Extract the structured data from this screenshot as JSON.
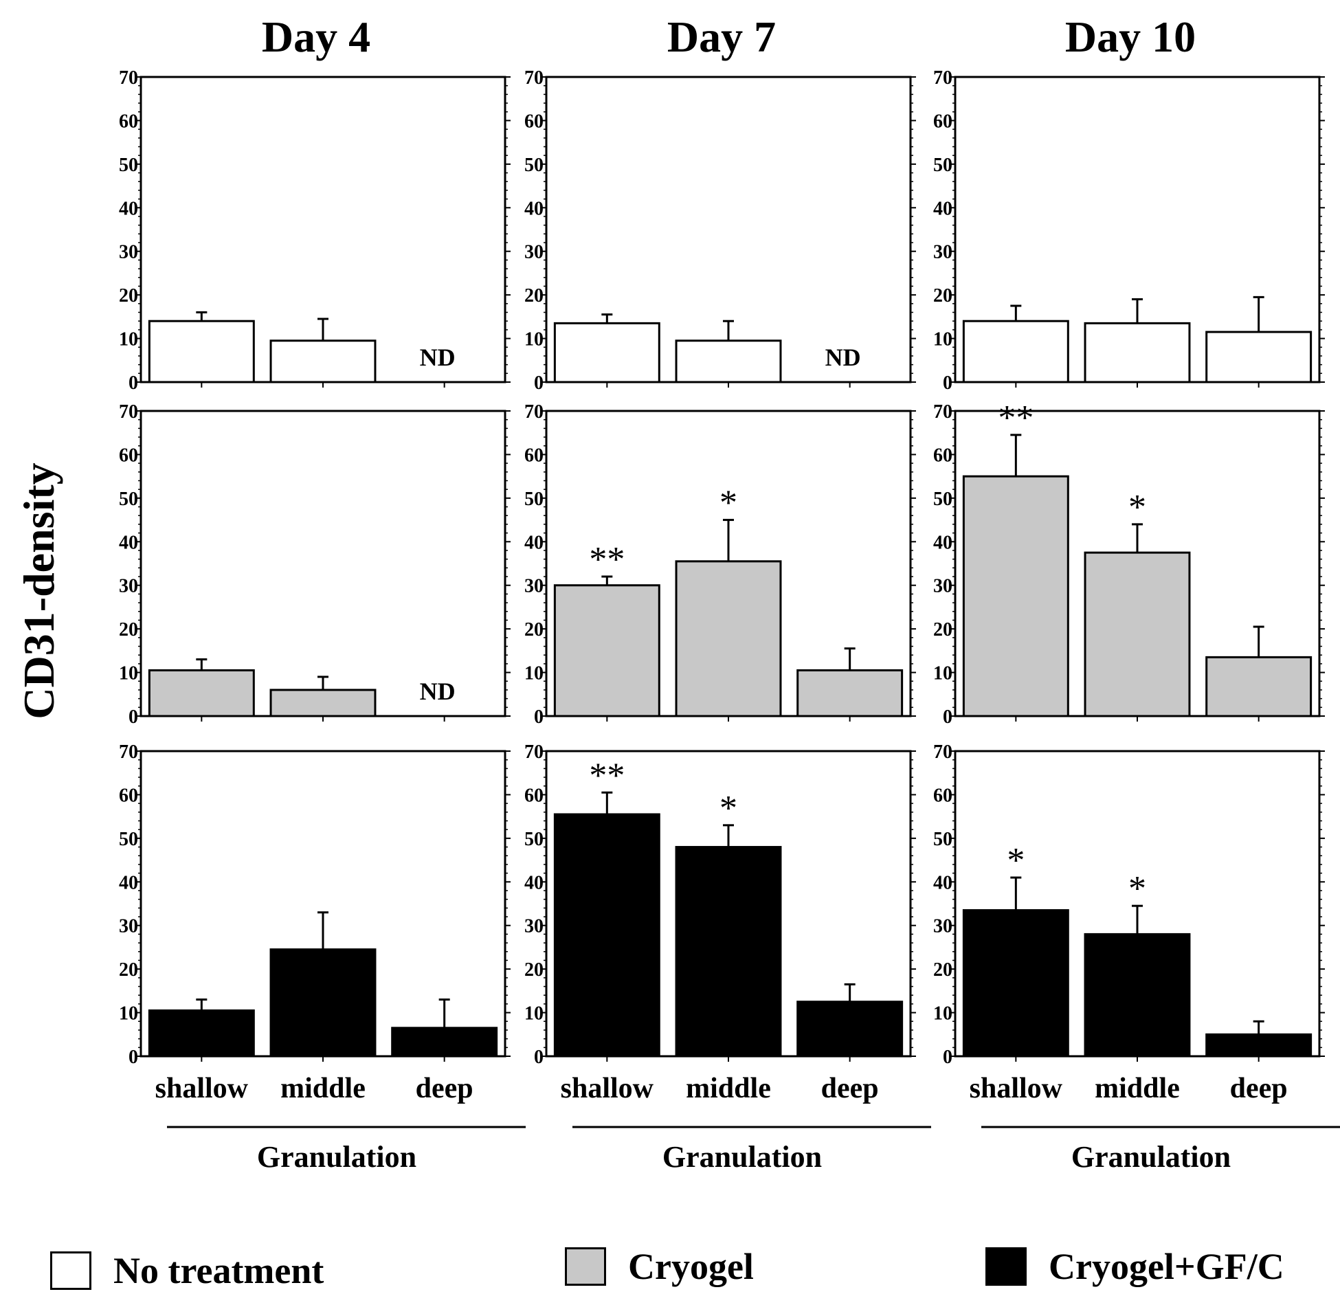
{
  "figure": {
    "ylabel": "CD31-density",
    "groups_label": "Granulation",
    "treatments": [
      {
        "name": "No treatment",
        "color": "#ffffff"
      },
      {
        "name": "Cryogel",
        "color": "#c8c8c8"
      },
      {
        "name": "Cryogel+GF/C",
        "color": "#000000"
      }
    ]
  },
  "chart_data": [
    {
      "type": "bar",
      "title": "Day 4",
      "treatment": "No treatment",
      "xlabel": "",
      "ylabel": "CD31-density",
      "ylim": [
        0,
        70
      ],
      "yticks": [
        0,
        10,
        20,
        30,
        40,
        50,
        60,
        70
      ],
      "categories": [
        "shallow",
        "middle",
        "deep"
      ],
      "values": [
        14,
        9.5,
        null
      ],
      "errors": [
        2,
        5,
        null
      ],
      "annotations": [
        "",
        "",
        "ND"
      ]
    },
    {
      "type": "bar",
      "title": "Day 7",
      "treatment": "No treatment",
      "xlabel": "",
      "ylabel": "CD31-density",
      "ylim": [
        0,
        70
      ],
      "yticks": [
        0,
        10,
        20,
        30,
        40,
        50,
        60,
        70
      ],
      "categories": [
        "shallow",
        "middle",
        "deep"
      ],
      "values": [
        13.5,
        9.5,
        null
      ],
      "errors": [
        2,
        4.5,
        null
      ],
      "annotations": [
        "",
        "",
        "ND"
      ]
    },
    {
      "type": "bar",
      "title": "Day 10",
      "treatment": "No treatment",
      "xlabel": "",
      "ylabel": "CD31-density",
      "ylim": [
        0,
        70
      ],
      "yticks": [
        0,
        10,
        20,
        30,
        40,
        50,
        60,
        70
      ],
      "categories": [
        "shallow",
        "middle",
        "deep"
      ],
      "values": [
        14,
        13.5,
        11.5
      ],
      "errors": [
        3.5,
        5.5,
        8
      ],
      "annotations": [
        "",
        "",
        ""
      ]
    },
    {
      "type": "bar",
      "title": "Day 4",
      "treatment": "Cryogel",
      "xlabel": "",
      "ylabel": "CD31-density",
      "ylim": [
        0,
        70
      ],
      "yticks": [
        0,
        10,
        20,
        30,
        40,
        50,
        60,
        70
      ],
      "categories": [
        "shallow",
        "middle",
        "deep"
      ],
      "values": [
        10.5,
        6,
        null
      ],
      "errors": [
        2.5,
        3,
        null
      ],
      "annotations": [
        "",
        "",
        "ND"
      ]
    },
    {
      "type": "bar",
      "title": "Day 7",
      "treatment": "Cryogel",
      "xlabel": "",
      "ylabel": "CD31-density",
      "ylim": [
        0,
        70
      ],
      "yticks": [
        0,
        10,
        20,
        30,
        40,
        50,
        60,
        70
      ],
      "categories": [
        "shallow",
        "middle",
        "deep"
      ],
      "values": [
        30,
        35.5,
        10.5
      ],
      "errors": [
        2,
        9.5,
        5
      ],
      "annotations": [
        "**",
        "*",
        ""
      ]
    },
    {
      "type": "bar",
      "title": "Day 10",
      "treatment": "Cryogel",
      "xlabel": "",
      "ylabel": "CD31-density",
      "ylim": [
        0,
        70
      ],
      "yticks": [
        0,
        10,
        20,
        30,
        40,
        50,
        60,
        70
      ],
      "categories": [
        "shallow",
        "middle",
        "deep"
      ],
      "values": [
        55,
        37.5,
        13.5
      ],
      "errors": [
        9.5,
        6.5,
        7
      ],
      "annotations": [
        "**",
        "*",
        ""
      ]
    },
    {
      "type": "bar",
      "title": "Day 4",
      "treatment": "Cryogel+GF/C",
      "xlabel": "Granulation",
      "ylabel": "CD31-density",
      "ylim": [
        0,
        70
      ],
      "yticks": [
        0,
        10,
        20,
        30,
        40,
        50,
        60,
        70
      ],
      "categories": [
        "shallow",
        "middle",
        "deep"
      ],
      "values": [
        10.5,
        24.5,
        6.5
      ],
      "errors": [
        2.5,
        8.5,
        6.5
      ],
      "annotations": [
        "",
        "",
        ""
      ]
    },
    {
      "type": "bar",
      "title": "Day 7",
      "treatment": "Cryogel+GF/C",
      "xlabel": "Granulation",
      "ylabel": "CD31-density",
      "ylim": [
        0,
        70
      ],
      "yticks": [
        0,
        10,
        20,
        30,
        40,
        50,
        60,
        70
      ],
      "categories": [
        "shallow",
        "middle",
        "deep"
      ],
      "values": [
        55.5,
        48,
        12.5
      ],
      "errors": [
        5,
        5,
        4
      ],
      "annotations": [
        "**",
        "*",
        ""
      ]
    },
    {
      "type": "bar",
      "title": "Day 10",
      "treatment": "Cryogel+GF/C",
      "xlabel": "Granulation",
      "ylabel": "CD31-density",
      "ylim": [
        0,
        70
      ],
      "yticks": [
        0,
        10,
        20,
        30,
        40,
        50,
        60,
        70
      ],
      "categories": [
        "shallow",
        "middle",
        "deep"
      ],
      "values": [
        33.5,
        28,
        5
      ],
      "errors": [
        7.5,
        6.5,
        3
      ],
      "annotations": [
        "*",
        "*",
        ""
      ]
    }
  ]
}
